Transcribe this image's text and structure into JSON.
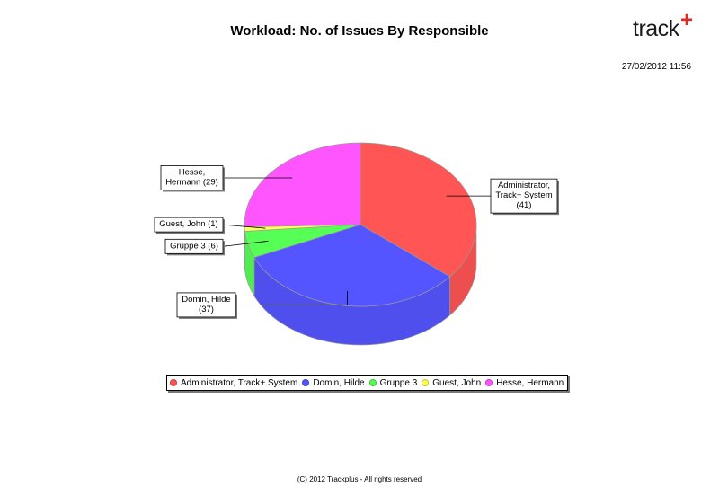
{
  "header": {
    "title": "Workload: No. of Issues By Responsible",
    "timestamp": "27/02/2012 11:56",
    "logo_text": "track",
    "logo_mark": "+"
  },
  "footer": {
    "text": "(C) 2012 Trackplus - All rights reserved"
  },
  "chart_data": {
    "type": "pie",
    "title": "Workload: No. of Issues By Responsible",
    "style": "3d",
    "legend_position": "bottom",
    "slices": [
      {
        "name": "Administrator, Track+ System",
        "value": 41,
        "label": "Administrator,\nTrack+ System\n(41)",
        "color": "#ff5555"
      },
      {
        "name": "Domin, Hilde",
        "value": 37,
        "label": "Domin, Hilde\n(37)",
        "color": "#5555ff"
      },
      {
        "name": "Gruppe 3",
        "value": 6,
        "label": "Gruppe 3 (6)",
        "color": "#55ff55"
      },
      {
        "name": "Guest, John",
        "value": 1,
        "label": "Guest, John (1)",
        "color": "#ffff55"
      },
      {
        "name": "Hesse, Hermann",
        "value": 29,
        "label": "Hesse,\nHermann (29)",
        "color": "#ff55ff"
      }
    ]
  }
}
